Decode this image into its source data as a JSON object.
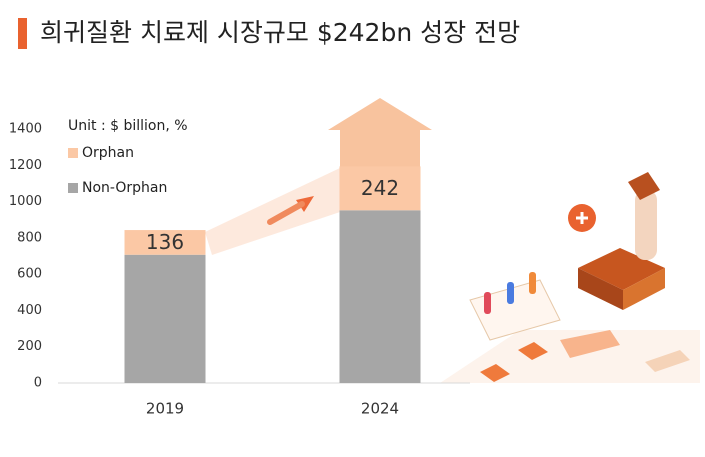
{
  "chart_data": {
    "type": "stacked_bar",
    "title": "희귀질환 치료제 시장규모 $242bn 성장 전망",
    "unit_label": "Unit : $ billion, %",
    "categories": [
      "2019",
      "2024"
    ],
    "series": [
      {
        "name": "Non-Orphan",
        "color": "#a6a6a6",
        "values": [
          707,
          952
        ]
      },
      {
        "name": "Orphan",
        "color": "#fbc8a5",
        "values": [
          136,
          242
        ]
      }
    ],
    "ylim": [
      0,
      1400
    ],
    "yticks": [
      0,
      200,
      400,
      600,
      800,
      1000,
      1200,
      1400
    ],
    "grid": false
  }
}
